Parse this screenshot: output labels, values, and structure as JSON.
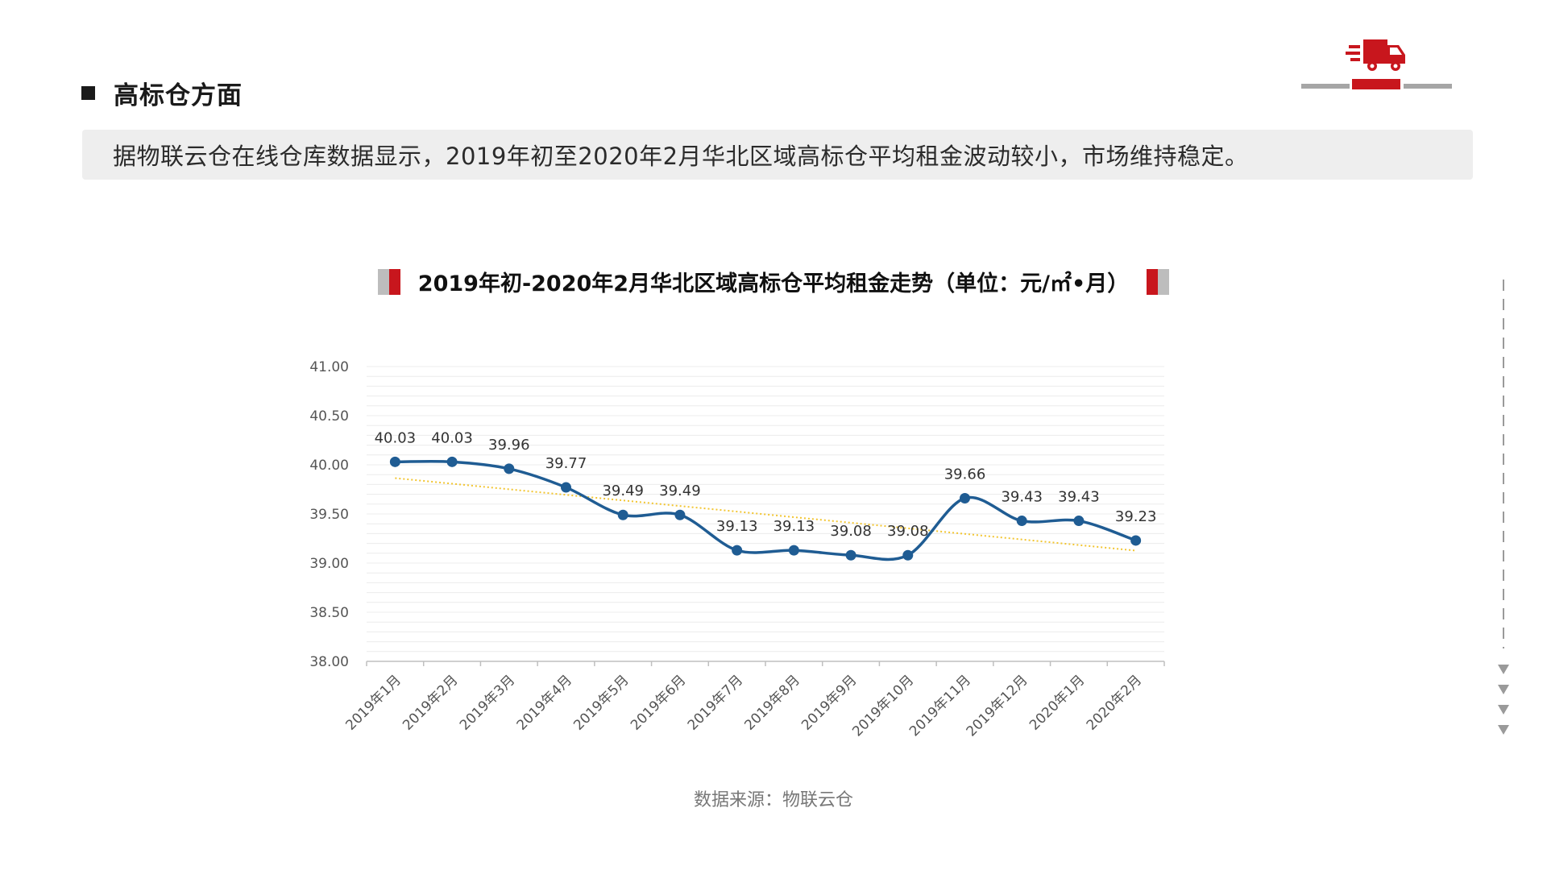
{
  "header": {
    "section_title": "高标仓方面"
  },
  "summary": {
    "text": "据物联云仓在线仓库数据显示，2019年初至2020年2月华北区域高标仓平均租金波动较小，市场维持稳定。"
  },
  "colors": {
    "brand_red": "#c8161d",
    "deco_grey": "#bdbdbd",
    "line": "#1f5c93",
    "trend": "#f2c531",
    "banner_bg": "#eeeeee"
  },
  "icons": {
    "logo": "delivery-truck-icon",
    "section_bullet": "square-bullet-icon",
    "scroll": "chevron-down-icon"
  },
  "chart_data": {
    "type": "line",
    "title": "2019年初-2020年2月华北区域高标仓平均租金走势（单位：元/㎡•月）",
    "categories": [
      "2019年1月",
      "2019年2月",
      "2019年3月",
      "2019年4月",
      "2019年5月",
      "2019年6月",
      "2019年7月",
      "2019年8月",
      "2019年9月",
      "2019年10月",
      "2019年11月",
      "2019年12月",
      "2020年1月",
      "2020年2月"
    ],
    "series": [
      {
        "values": [
          40.03,
          40.03,
          39.96,
          39.77,
          39.49,
          39.49,
          39.13,
          39.13,
          39.08,
          39.08,
          39.66,
          39.43,
          39.43,
          39.23
        ],
        "labels": [
          "40.03",
          "40.03",
          "39.96",
          "39.77",
          "39.49",
          "39.49",
          "39.13",
          "39.13",
          "39.08",
          "39.08",
          "39.66",
          "39.43",
          "39.43",
          "39.23"
        ]
      }
    ],
    "trendline": {
      "type": "linear",
      "style": "dotted"
    },
    "ylim": [
      38.0,
      41.0
    ],
    "yticks": [
      38.0,
      38.5,
      39.0,
      39.5,
      40.0,
      40.5,
      41.0
    ],
    "ytick_labels": [
      "38.00",
      "38.50",
      "39.00",
      "39.50",
      "40.00",
      "40.50",
      "41.00"
    ],
    "xlabel": "",
    "ylabel": "",
    "grid": true,
    "legend": "none"
  },
  "source": {
    "text": "数据来源：物联云仓"
  }
}
